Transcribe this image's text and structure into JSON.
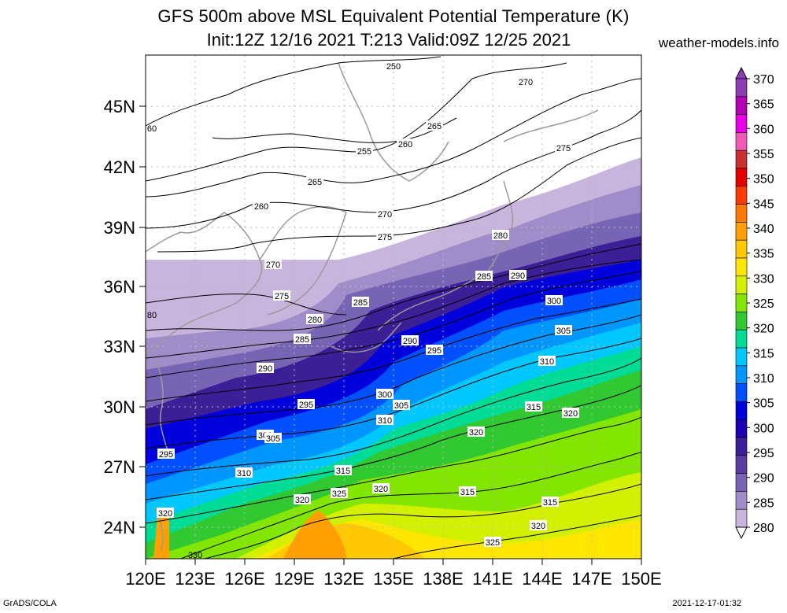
{
  "title_line1": "GFS 500m above MSL Equivalent Potential Temperature (K)",
  "title_line2": "Init:12Z 12/16 2021 T:213 Valid:09Z 12/25 2021",
  "site": "weather-models.info",
  "footer_left": "GrADS/COLA",
  "footer_right": "2021-12-17-01:32",
  "lat_labels": [
    "45N",
    "42N",
    "39N",
    "36N",
    "33N",
    "30N",
    "27N",
    "24N"
  ],
  "lon_labels": [
    "120E",
    "123E",
    "126E",
    "129E",
    "132E",
    "135E",
    "138E",
    "141E",
    "144E",
    "147E",
    "150E"
  ],
  "colorbar": {
    "labels": [
      "370",
      "365",
      "360",
      "355",
      "350",
      "345",
      "340",
      "335",
      "330",
      "325",
      "320",
      "315",
      "310",
      "305",
      "300",
      "295",
      "290",
      "285",
      "280"
    ],
    "colors": [
      "#8c3cb4",
      "#b400b4",
      "#e600e6",
      "#f05ab4",
      "#c83232",
      "#e60000",
      "#ff3c00",
      "#ff7800",
      "#ffa000",
      "#ffc800",
      "#ffe600",
      "#d2f000",
      "#82e600",
      "#32c832",
      "#00dc96",
      "#00c8ff",
      "#0096ff",
      "#0050ff",
      "#0000dc",
      "#1e00b4",
      "#3c1e96",
      "#5a3ca0",
      "#7864b4",
      "#a08cc8",
      "#c8b4dc"
    ]
  },
  "contour_labels": [
    "250",
    "255",
    "260",
    "265",
    "270",
    "275",
    "280",
    "285",
    "290",
    "295",
    "300",
    "305",
    "310",
    "315",
    "320",
    "325",
    "330"
  ],
  "edge_labels": [
    "60",
    "80",
    "295",
    "320",
    "330"
  ]
}
